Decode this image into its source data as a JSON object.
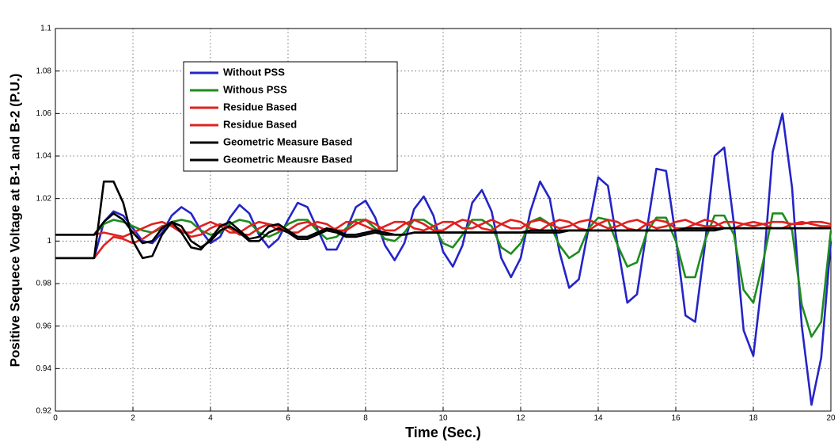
{
  "chart_data": {
    "type": "line",
    "xlabel": "Time (Sec.)",
    "ylabel": "Positive Sequece Voltage at B-1 and B-2 (P.U.)",
    "xlim": [
      0,
      20
    ],
    "xticks": [
      0,
      2,
      4,
      6,
      8,
      10,
      12,
      14,
      16,
      18,
      20
    ],
    "ylim": [
      0.92,
      1.1
    ],
    "yticks": [
      0.92,
      0.94,
      0.96,
      0.98,
      1,
      1.02,
      1.04,
      1.06,
      1.08,
      1.1
    ],
    "grid": true,
    "legend": "upper left",
    "x": [
      0,
      0.25,
      0.5,
      0.75,
      1,
      1.25,
      1.5,
      1.75,
      2,
      2.25,
      2.5,
      2.75,
      3,
      3.25,
      3.5,
      3.75,
      4,
      4.25,
      4.5,
      4.75,
      5,
      5.25,
      5.5,
      5.75,
      6,
      6.25,
      6.5,
      6.75,
      7,
      7.25,
      7.5,
      7.75,
      8,
      8.25,
      8.5,
      8.75,
      9,
      9.25,
      9.5,
      9.75,
      10,
      10.25,
      10.5,
      10.75,
      11,
      11.25,
      11.5,
      11.75,
      12,
      12.25,
      12.5,
      12.75,
      13,
      13.25,
      13.5,
      13.75,
      14,
      14.25,
      14.5,
      14.75,
      15,
      15.25,
      15.5,
      15.75,
      16,
      16.25,
      16.5,
      16.75,
      17,
      17.25,
      17.5,
      17.75,
      18,
      18.25,
      18.5,
      18.75,
      19,
      19.25,
      19.5,
      19.75,
      20
    ],
    "series": [
      {
        "name": "Without PSS",
        "color": "#2424c8",
        "values": [
          0.992,
          0.992,
          0.992,
          0.992,
          0.992,
          1.009,
          1.014,
          1.012,
          1.006,
          1.0,
          0.999,
          1.004,
          1.012,
          1.016,
          1.013,
          1.005,
          0.999,
          1.002,
          1.011,
          1.017,
          1.013,
          1.003,
          0.997,
          1.001,
          1.01,
          1.018,
          1.016,
          1.006,
          0.996,
          0.996,
          1.005,
          1.016,
          1.019,
          1.011,
          0.998,
          0.991,
          0.999,
          1.015,
          1.021,
          1.012,
          0.995,
          0.988,
          0.998,
          1.018,
          1.024,
          1.014,
          0.992,
          0.983,
          0.992,
          1.014,
          1.028,
          1.02,
          0.995,
          0.978,
          0.982,
          1.006,
          1.03,
          1.026,
          0.998,
          0.971,
          0.975,
          1.005,
          1.034,
          1.033,
          1.002,
          0.965,
          0.962,
          0.998,
          1.04,
          1.044,
          1.008,
          0.958,
          0.946,
          0.985,
          1.042,
          1.06,
          1.025,
          0.96,
          0.923,
          0.945,
          1.0
        ]
      },
      {
        "name": "Withous PSS",
        "color": "#1e8c1e",
        "values": [
          1.003,
          1.003,
          1.003,
          1.003,
          1.003,
          1.008,
          1.01,
          1.009,
          1.007,
          1.005,
          1.004,
          1.006,
          1.009,
          1.01,
          1.009,
          1.005,
          1.003,
          1.004,
          1.008,
          1.01,
          1.009,
          1.004,
          1.002,
          1.004,
          1.008,
          1.01,
          1.01,
          1.005,
          1.001,
          1.002,
          1.006,
          1.01,
          1.01,
          1.006,
          1.001,
          1.0,
          1.004,
          1.01,
          1.01,
          1.007,
          0.999,
          0.997,
          1.003,
          1.01,
          1.01,
          1.007,
          0.997,
          0.994,
          0.999,
          1.009,
          1.011,
          1.008,
          0.998,
          0.992,
          0.995,
          1.006,
          1.011,
          1.01,
          0.998,
          0.988,
          0.99,
          1.004,
          1.011,
          1.011,
          1.0,
          0.983,
          0.983,
          1.0,
          1.012,
          1.012,
          1.003,
          0.977,
          0.971,
          0.99,
          1.013,
          1.013,
          1.005,
          0.97,
          0.955,
          0.962,
          1.005
        ]
      },
      {
        "name": "Residue Based",
        "color": "#e02020",
        "values": [
          0.992,
          0.992,
          0.992,
          0.992,
          0.992,
          0.998,
          1.002,
          1.001,
          0.999,
          1.001,
          1.004,
          1.007,
          1.008,
          1.005,
          1.002,
          1.003,
          1.006,
          1.008,
          1.006,
          1.003,
          1.003,
          1.006,
          1.008,
          1.007,
          1.004,
          1.004,
          1.007,
          1.009,
          1.008,
          1.005,
          1.005,
          1.008,
          1.01,
          1.008,
          1.005,
          1.005,
          1.008,
          1.01,
          1.008,
          1.005,
          1.005,
          1.008,
          1.01,
          1.009,
          1.006,
          1.005,
          1.008,
          1.01,
          1.009,
          1.006,
          1.005,
          1.008,
          1.01,
          1.009,
          1.006,
          1.005,
          1.008,
          1.01,
          1.009,
          1.006,
          1.005,
          1.008,
          1.01,
          1.009,
          1.006,
          1.006,
          1.008,
          1.01,
          1.009,
          1.006,
          1.006,
          1.008,
          1.009,
          1.008,
          1.006,
          1.006,
          1.008,
          1.009,
          1.008,
          1.007,
          1.007
        ]
      },
      {
        "name": "Residue Based",
        "color": "#e02020",
        "values": [
          1.003,
          1.003,
          1.003,
          1.003,
          1.003,
          1.004,
          1.003,
          1.002,
          1.004,
          1.006,
          1.008,
          1.009,
          1.007,
          1.004,
          1.004,
          1.007,
          1.009,
          1.007,
          1.004,
          1.004,
          1.007,
          1.009,
          1.008,
          1.005,
          1.005,
          1.008,
          1.009,
          1.007,
          1.005,
          1.006,
          1.009,
          1.009,
          1.007,
          1.005,
          1.007,
          1.009,
          1.009,
          1.006,
          1.005,
          1.007,
          1.009,
          1.009,
          1.006,
          1.006,
          1.008,
          1.01,
          1.008,
          1.006,
          1.006,
          1.009,
          1.01,
          1.008,
          1.006,
          1.007,
          1.009,
          1.01,
          1.008,
          1.006,
          1.007,
          1.009,
          1.01,
          1.008,
          1.006,
          1.007,
          1.009,
          1.01,
          1.008,
          1.007,
          1.007,
          1.009,
          1.009,
          1.008,
          1.007,
          1.008,
          1.009,
          1.009,
          1.008,
          1.008,
          1.009,
          1.009,
          1.008
        ]
      },
      {
        "name": "Geometric Measure Based",
        "color": "#000000",
        "values": [
          0.992,
          0.992,
          0.992,
          0.992,
          0.992,
          1.028,
          1.028,
          1.018,
          1.0,
          0.992,
          0.993,
          1.003,
          1.009,
          1.007,
          1.0,
          0.997,
          1.0,
          1.005,
          1.007,
          1.004,
          1.0,
          1.0,
          1.004,
          1.006,
          1.004,
          1.001,
          1.001,
          1.003,
          1.005,
          1.004,
          1.002,
          1.002,
          1.003,
          1.004,
          1.003,
          1.003,
          1.003,
          1.004,
          1.004,
          1.004,
          1.004,
          1.004,
          1.004,
          1.004,
          1.004,
          1.004,
          1.004,
          1.004,
          1.004,
          1.005,
          1.005,
          1.005,
          1.005,
          1.005,
          1.005,
          1.005,
          1.005,
          1.005,
          1.005,
          1.005,
          1.005,
          1.005,
          1.005,
          1.005,
          1.005,
          1.006,
          1.006,
          1.006,
          1.006,
          1.006,
          1.006,
          1.006,
          1.006,
          1.006,
          1.006,
          1.006,
          1.006,
          1.006,
          1.006,
          1.006,
          1.006
        ]
      },
      {
        "name": "Geometric Meausre Based",
        "color": "#000000",
        "values": [
          1.003,
          1.003,
          1.003,
          1.003,
          1.003,
          1.009,
          1.013,
          1.01,
          1.004,
          0.999,
          1.0,
          1.006,
          1.009,
          1.004,
          0.997,
          0.996,
          1.001,
          1.007,
          1.009,
          1.005,
          1.001,
          1.002,
          1.007,
          1.008,
          1.005,
          1.002,
          1.002,
          1.004,
          1.006,
          1.005,
          1.003,
          1.003,
          1.004,
          1.005,
          1.004,
          1.003,
          1.003,
          1.004,
          1.004,
          1.004,
          1.004,
          1.004,
          1.004,
          1.004,
          1.004,
          1.004,
          1.004,
          1.004,
          1.004,
          1.004,
          1.004,
          1.004,
          1.004,
          1.005,
          1.005,
          1.005,
          1.005,
          1.005,
          1.005,
          1.005,
          1.005,
          1.005,
          1.005,
          1.005,
          1.005,
          1.005,
          1.005,
          1.005,
          1.005,
          1.006,
          1.006,
          1.006,
          1.006,
          1.006,
          1.006,
          1.006,
          1.006,
          1.006,
          1.006,
          1.006,
          1.006
        ]
      }
    ]
  }
}
